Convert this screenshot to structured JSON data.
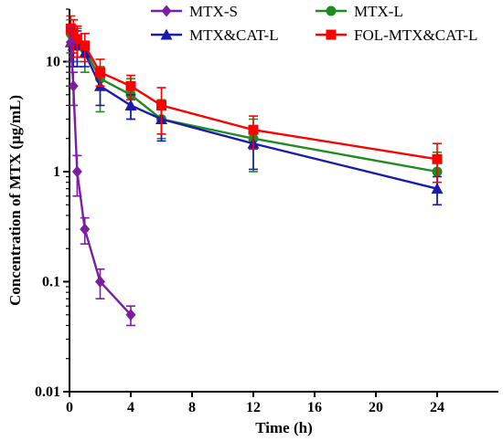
{
  "chart_data": {
    "type": "line",
    "title": "",
    "xlabel": "Time (h)",
    "ylabel": "Concentration of MTX (μg/mL)",
    "x_scale": "linear",
    "y_scale": "log",
    "xlim": [
      0,
      28
    ],
    "ylim": [
      0.01,
      30
    ],
    "x_ticks": [
      0,
      4,
      8,
      12,
      16,
      20,
      24
    ],
    "y_ticks": [
      0.01,
      0.1,
      1,
      10
    ],
    "y_tick_labels": [
      "0.01",
      "0.1",
      "1",
      "10"
    ],
    "grid": false,
    "legend_position": "top",
    "series": [
      {
        "name": "MTX-S",
        "color": "#7B1FA2",
        "marker": "diamond",
        "x": [
          0.083,
          0.25,
          0.5,
          1,
          2,
          4
        ],
        "y": [
          15,
          6,
          1,
          0.3,
          0.1,
          0.05
        ],
        "err_low": [
          5,
          2,
          0.4,
          0.08,
          0.03,
          0.01
        ],
        "err_high": [
          5,
          2,
          0.4,
          0.08,
          0.03,
          0.01
        ]
      },
      {
        "name": "MTX-L",
        "color": "#1E8C1E",
        "marker": "circle",
        "x": [
          0.083,
          0.25,
          0.5,
          1,
          2,
          4,
          6,
          12,
          24
        ],
        "y": [
          18,
          16,
          15,
          13,
          7,
          5,
          3,
          2,
          1
        ],
        "err_low": [
          6,
          5,
          5,
          5,
          3.5,
          2,
          1,
          1,
          0.5
        ],
        "err_high": [
          6,
          5,
          5,
          5,
          2,
          2,
          1.5,
          1,
          0.5
        ]
      },
      {
        "name": "MTX&CAT-L",
        "color": "#1A1AAE",
        "marker": "triangle",
        "x": [
          0.083,
          0.25,
          0.5,
          1,
          2,
          4,
          6,
          12,
          24
        ],
        "y": [
          15,
          14,
          14,
          12,
          6,
          4,
          3,
          1.8,
          0.7
        ],
        "err_low": [
          5,
          5,
          5,
          3,
          2,
          1,
          1.1,
          0.75,
          0.2
        ],
        "err_high": [
          5,
          5,
          5,
          3,
          2,
          1,
          1,
          0.8,
          0.2
        ]
      },
      {
        "name": "FOL-MTX&CAT-L",
        "color": "#FF0000",
        "marker": "square",
        "x": [
          0.083,
          0.25,
          0.5,
          1,
          2,
          4,
          6,
          12,
          24
        ],
        "y": [
          20,
          18,
          16,
          14,
          8,
          6,
          4,
          2.4,
          1.3
        ],
        "err_low": [
          6,
          6,
          5,
          4,
          2,
          1.5,
          1.8,
          0.8,
          0.5
        ],
        "err_high": [
          6,
          6,
          5,
          4,
          2.5,
          1.5,
          1.8,
          0.8,
          0.5
        ]
      }
    ]
  }
}
